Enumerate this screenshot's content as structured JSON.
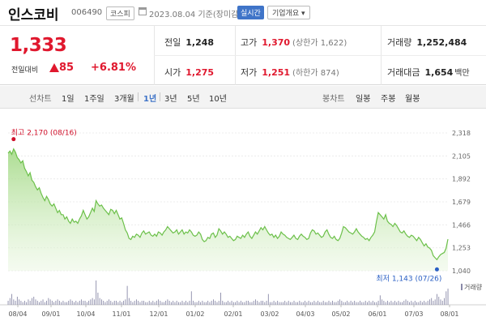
{
  "header": {
    "stock_name": "인스코비",
    "stock_code": "006490",
    "market": "코스피",
    "date": "2023.08.04 기준(장미감)",
    "realtime_label": "실시간",
    "company_info_label": "기업개요 ▾"
  },
  "quote": {
    "price": "1,333",
    "change_label": "전일대비",
    "change": "85",
    "change_pct": "+6.81%",
    "prev_close": {
      "label": "전일",
      "value": "1,248"
    },
    "open": {
      "label": "시가",
      "value": "1,275"
    },
    "high": {
      "label": "고가",
      "value": "1,370",
      "limit": "(상한가 1,622)"
    },
    "low": {
      "label": "저가",
      "value": "1,251",
      "limit": "(하한가 874)"
    },
    "volume": {
      "label": "거래량",
      "value": "1,252,484"
    },
    "amount": {
      "label": "거래대금",
      "value": "1,654",
      "unit": "백만"
    },
    "up_color": "#e0182e"
  },
  "periods": {
    "line_label": "선차트",
    "line_items": [
      "1일",
      "1주일",
      "3개월",
      "1년",
      "3년",
      "5년",
      "10년"
    ],
    "selected": "1년",
    "candle_label": "봉차트",
    "candle_items": [
      "일봉",
      "주봉",
      "월봉"
    ]
  },
  "chart_data": {
    "type": "area",
    "y_ticks": [
      "2,318",
      "2,105",
      "1,892",
      "1,679",
      "1,466",
      "1,253",
      "1,040"
    ],
    "ylim": [
      1040,
      2318
    ],
    "x_ticks": [
      "08/04",
      "09/01",
      "10/04",
      "11/01",
      "12/01",
      "01/02",
      "02/01",
      "03/02",
      "04/03",
      "05/02",
      "06/01",
      "07/03",
      "08/01"
    ],
    "max_annotation": "최고 2,170 (08/16)",
    "min_annotation": "최저 1,143 (07/26)",
    "volume_label": "거래량",
    "values": [
      2130,
      2150,
      2120,
      2170,
      2140,
      2090,
      2070,
      2040,
      2060,
      1990,
      1960,
      1920,
      1950,
      1880,
      1860,
      1820,
      1790,
      1810,
      1760,
      1720,
      1690,
      1730,
      1700,
      1660,
      1640,
      1660,
      1620,
      1580,
      1600,
      1560,
      1560,
      1520,
      1540,
      1500,
      1480,
      1520,
      1490,
      1500,
      1480,
      1520,
      1550,
      1600,
      1560,
      1520,
      1540,
      1580,
      1620,
      1590,
      1690,
      1660,
      1640,
      1650,
      1620,
      1600,
      1580,
      1560,
      1610,
      1600,
      1570,
      1600,
      1560,
      1520,
      1530,
      1480,
      1420,
      1390,
      1340,
      1330,
      1360,
      1350,
      1380,
      1370,
      1350,
      1390,
      1410,
      1380,
      1390,
      1400,
      1370,
      1360,
      1380,
      1360,
      1400,
      1390,
      1370,
      1400,
      1420,
      1450,
      1430,
      1410,
      1390,
      1400,
      1420,
      1380,
      1400,
      1420,
      1380,
      1400,
      1390,
      1420,
      1400,
      1370,
      1360,
      1370,
      1400,
      1380,
      1330,
      1310,
      1320,
      1350,
      1340,
      1380,
      1390,
      1350,
      1370,
      1430,
      1410,
      1380,
      1400,
      1380,
      1350,
      1360,
      1340,
      1320,
      1330,
      1360,
      1350,
      1340,
      1370,
      1350,
      1380,
      1400,
      1360,
      1340,
      1370,
      1400,
      1380,
      1410,
      1440,
      1420,
      1450,
      1420,
      1390,
      1370,
      1380,
      1350,
      1370,
      1340,
      1360,
      1400,
      1380,
      1370,
      1350,
      1340,
      1330,
      1350,
      1370,
      1340,
      1330,
      1360,
      1380,
      1360,
      1350,
      1330,
      1340,
      1390,
      1420,
      1410,
      1380,
      1390,
      1370,
      1350,
      1360,
      1400,
      1420,
      1380,
      1350,
      1340,
      1360,
      1330,
      1320,
      1340,
      1390,
      1450,
      1440,
      1420,
      1400,
      1390,
      1380,
      1400,
      1430,
      1400,
      1380,
      1360,
      1350,
      1330,
      1340,
      1320,
      1350,
      1370,
      1400,
      1500,
      1580,
      1560,
      1540,
      1520,
      1560,
      1500,
      1480,
      1470,
      1450,
      1480,
      1460,
      1430,
      1400,
      1390,
      1410,
      1380,
      1360,
      1350,
      1370,
      1360,
      1340,
      1320,
      1350,
      1330,
      1300,
      1270,
      1290,
      1260,
      1250,
      1230,
      1180,
      1160,
      1143,
      1170,
      1190,
      1200,
      1210,
      1248,
      1333
    ],
    "volume_values": [
      3,
      5,
      8,
      4,
      3,
      6,
      4,
      3,
      2,
      3,
      2,
      4,
      3,
      5,
      6,
      4,
      3,
      2,
      3,
      4,
      2,
      3,
      5,
      4,
      3,
      2,
      3,
      4,
      3,
      2,
      3,
      2,
      2,
      3,
      4,
      3,
      2,
      3,
      2,
      3,
      4,
      3,
      3,
      2,
      3,
      4,
      5,
      4,
      18,
      9,
      5,
      4,
      3,
      2,
      3,
      4,
      3,
      2,
      3,
      3,
      2,
      3,
      2,
      3,
      4,
      14,
      5,
      3,
      2,
      3,
      4,
      3,
      2,
      3,
      3,
      2,
      2,
      3,
      2,
      3,
      2,
      3,
      4,
      3,
      2,
      2,
      3,
      4,
      3,
      2,
      3,
      2,
      3,
      2,
      2,
      3,
      2,
      3,
      2,
      3,
      10,
      3,
      2,
      2,
      3,
      2,
      3,
      2,
      2,
      3,
      2,
      3,
      4,
      3,
      2,
      3,
      9,
      3,
      2,
      2,
      3,
      2,
      3,
      2,
      2,
      3,
      2,
      3,
      2,
      2,
      3,
      3,
      2,
      2,
      3,
      4,
      3,
      2,
      3,
      3,
      2,
      3,
      8,
      2,
      2,
      3,
      2,
      3,
      2,
      2,
      2,
      3,
      2,
      3,
      2,
      2,
      3,
      2,
      2,
      3,
      2,
      2,
      3,
      2,
      3,
      2,
      2,
      3,
      2,
      3,
      2,
      2,
      3,
      2,
      2,
      3,
      2,
      3,
      2,
      2,
      3,
      4,
      3,
      2,
      2,
      3,
      2,
      3,
      2,
      3,
      2,
      2,
      3,
      2,
      2,
      3,
      2,
      3,
      2,
      3,
      2,
      2,
      3,
      7,
      4,
      3,
      2,
      3,
      2,
      3,
      2,
      3,
      2,
      3,
      2,
      2,
      3,
      4,
      3,
      2,
      3,
      2,
      3,
      2,
      2,
      3,
      2,
      3,
      2,
      3,
      4,
      5,
      3,
      4,
      8,
      6,
      4,
      3,
      5,
      10,
      12
    ]
  }
}
